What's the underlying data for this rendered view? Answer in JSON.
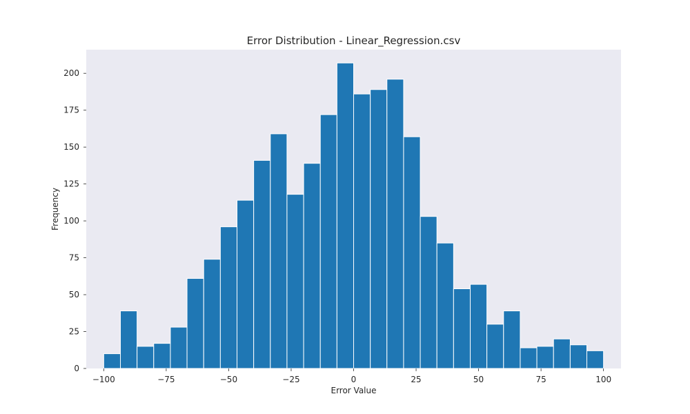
{
  "chart_data": {
    "type": "bar",
    "title": "Error Distribution - Linear_Regression.csv",
    "xlabel": "Error Value",
    "ylabel": "Frequency",
    "xlim": [
      -107,
      107
    ],
    "ylim": [
      0,
      216
    ],
    "x_ticks": [
      -100,
      -75,
      -50,
      -25,
      0,
      25,
      50,
      75,
      100
    ],
    "x_tick_labels": [
      "−100",
      "−75",
      "−50",
      "−25",
      "0",
      "25",
      "50",
      "75",
      "100"
    ],
    "y_ticks": [
      0,
      25,
      50,
      75,
      100,
      125,
      150,
      175,
      200
    ],
    "y_tick_labels": [
      "0",
      "25",
      "50",
      "75",
      "100",
      "125",
      "150",
      "175",
      "200"
    ],
    "bin_edges": [
      -100,
      -93.33,
      -86.67,
      -80,
      -73.33,
      -66.67,
      -60,
      -53.33,
      -46.67,
      -40,
      -33.33,
      -26.67,
      -20,
      -13.33,
      -6.67,
      0,
      6.67,
      13.33,
      20,
      26.67,
      33.33,
      40,
      46.67,
      53.33,
      60,
      66.67,
      73.33,
      80,
      86.67,
      93.33,
      100
    ],
    "values": [
      10,
      39,
      15,
      17,
      28,
      61,
      74,
      96,
      114,
      141,
      159,
      118,
      139,
      172,
      207,
      186,
      189,
      196,
      157,
      103,
      85,
      54,
      57,
      30,
      39,
      14,
      15,
      20,
      16,
      12
    ],
    "grid": false,
    "colors": {
      "bar": "#1f77b4",
      "bar_edge": "#ffffff",
      "plot_background": "#eaeaf2"
    }
  }
}
